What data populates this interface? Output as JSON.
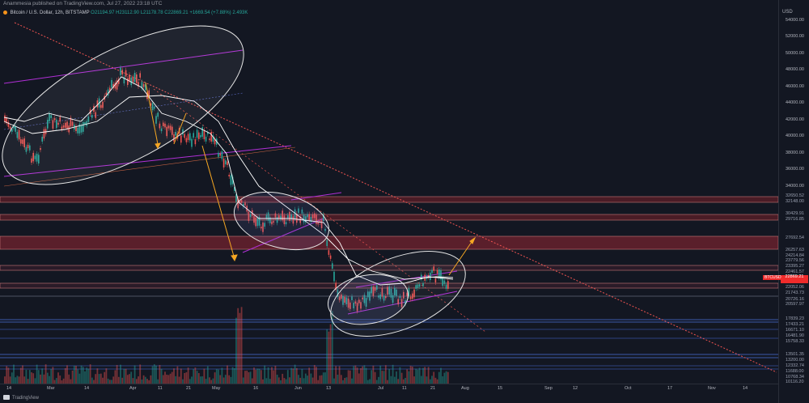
{
  "header": {
    "publisher_text": "Anammesia published on TradingView.com, Jul 27, 2022 23:18 UTC"
  },
  "legend": {
    "symbol": "Bitcoin / U.S. Dollar, 12h, BITSTAMP",
    "open": "O21194.97",
    "high": "H23112.90",
    "low": "L21178.78",
    "close": "C22869.21",
    "change": "+1669.54 (+7.88%)",
    "volume": "2.493K"
  },
  "price_axis": {
    "currency": "USD",
    "grid_labels": [
      "54000.00",
      "52000.00",
      "50000.00",
      "48000.00",
      "46000.00",
      "44000.00",
      "42000.00",
      "40000.00",
      "38000.00",
      "36000.00",
      "34000.00"
    ],
    "level_labels": [
      "32650.52",
      "32148.00",
      "30429.91",
      "29716.85",
      "27692.54",
      "26257.63",
      "24214.84",
      "23779.56",
      "23395.27",
      "22461.57",
      "22052.06",
      "21743.73",
      "20726.16",
      "20597.97",
      "17839.23",
      "17433.21",
      "16671.10",
      "16481.90",
      "15758.33",
      "13501.35",
      "13200.00",
      "12332.74",
      "11688.00",
      "10768.34",
      "10116.20"
    ],
    "last_price": {
      "symbol": "BTCUSD",
      "price": "22869.21",
      "sub": "41:48",
      "color": "#ef2b2b"
    }
  },
  "time_axis": {
    "labels": [
      "14",
      "Mar",
      "14",
      "Apr",
      "11",
      "21",
      "May",
      "16",
      "Jun",
      "13",
      "Jul",
      "11",
      "21",
      "Aug",
      "15",
      "Sep",
      "12",
      "Oct",
      "17",
      "Nov",
      "14"
    ]
  },
  "footer": {
    "brand": "TradingView"
  },
  "colors": {
    "background": "#131722",
    "candle_up": "#26a69a",
    "candle_down": "#ef5350",
    "zone_fill": "#5a1f2b",
    "trendline": "#ef5350",
    "channel": "#b02fd6",
    "arrow": "#f5a623",
    "ellipse": "#e6e6e6"
  }
}
